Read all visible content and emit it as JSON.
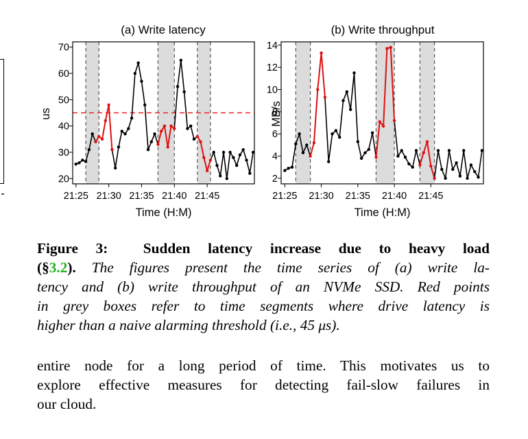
{
  "chart_data": [
    {
      "type": "line",
      "title": "(a) Write latency",
      "xlabel": "Time (H:M)",
      "ylabel": "us",
      "x_ticks": [
        "21:25",
        "21:30",
        "21:35",
        "21:40",
        "21:45"
      ],
      "y_ticks": [
        "20",
        "30",
        "40",
        "50",
        "60",
        "70"
      ],
      "ylim": [
        18,
        72
      ],
      "threshold": 45,
      "shaded_intervals": [
        [
          21.5,
          23.5
        ],
        [
          32.5,
          35.0
        ],
        [
          38.5,
          40.5
        ]
      ],
      "x": [
        20,
        20.5,
        21,
        21.5,
        22,
        22.5,
        23,
        23.5,
        24,
        24.5,
        25,
        25.5,
        26,
        26.5,
        27,
        27.5,
        28,
        28.5,
        29,
        29.5,
        30,
        30.5,
        31,
        31.5,
        32,
        32.5,
        33,
        33.5,
        34,
        34.5,
        35,
        35.5,
        36,
        36.5,
        37,
        37.5,
        38,
        38.5,
        39,
        39.5,
        40,
        40.5,
        41,
        41.5,
        42,
        42.5,
        43,
        43.5,
        44,
        44.5,
        45,
        45.5,
        46,
        46.5,
        47
      ],
      "values": [
        25.5,
        26,
        27,
        26.5,
        31,
        37,
        34,
        36,
        35,
        42,
        48,
        31,
        24,
        32,
        38,
        37,
        39,
        43,
        60,
        64,
        57,
        48,
        31,
        34,
        37,
        33,
        38,
        40,
        32,
        40,
        39,
        55,
        65,
        53,
        39,
        40,
        35,
        36,
        34,
        28,
        23,
        27,
        30,
        25,
        21,
        30,
        20,
        30,
        28,
        25,
        29,
        31,
        27,
        22,
        30
      ],
      "highlighted_x": [
        23,
        23.5,
        24,
        24.5,
        25,
        25.5,
        32.5,
        33,
        33.5,
        34,
        34.5,
        35,
        38.5,
        39,
        39.5,
        40,
        40.5
      ],
      "colors": {
        "normal": "#000000",
        "anomaly": "#dd1111",
        "threshold": "#ee2222",
        "shade": "#dcdcdc"
      }
    },
    {
      "type": "line",
      "title": "(b) Write throughput",
      "xlabel": "Time (H:M)",
      "ylabel": "MB/s",
      "x_ticks": [
        "21:25",
        "21:30",
        "21:35",
        "21:40",
        "21:45"
      ],
      "y_ticks": [
        "2",
        "4",
        "6",
        "8",
        "10",
        "12",
        "14"
      ],
      "ylim": [
        1.5,
        14.3
      ],
      "shaded_intervals": [
        [
          21.5,
          23.5
        ],
        [
          32.5,
          35.0
        ],
        [
          38.5,
          40.5
        ]
      ],
      "x": [
        20,
        20.5,
        21,
        21.5,
        22,
        22.5,
        23,
        23.5,
        24,
        24.5,
        25,
        25.5,
        26,
        26.5,
        27,
        27.5,
        28,
        28.5,
        29,
        29.5,
        30,
        30.5,
        31,
        31.5,
        32,
        32.5,
        33,
        33.5,
        34,
        34.5,
        35,
        35.5,
        36,
        36.5,
        37,
        37.5,
        38,
        38.5,
        39,
        39.5,
        40,
        40.5,
        41,
        41.5,
        42,
        42.5,
        43,
        43.5,
        44,
        44.5,
        45,
        45.5,
        46,
        46.5,
        47
      ],
      "values": [
        2.7,
        2.9,
        3.0,
        5.1,
        6.0,
        4.3,
        5.0,
        4.0,
        5.2,
        10.0,
        13.3,
        9.3,
        3.5,
        6.0,
        6.3,
        5.7,
        9.0,
        9.8,
        8.2,
        11.5,
        5.3,
        3.8,
        4.3,
        4.6,
        6.1,
        3.9,
        7.1,
        6.7,
        13.7,
        13.8,
        7.2,
        4.0,
        4.5,
        3.9,
        3.3,
        3.0,
        4.5,
        3.2,
        4.3,
        5.3,
        3.1,
        2.0,
        4.5,
        2.8,
        2.0,
        4.5,
        2.8,
        3.4,
        2.2,
        4.5,
        2.0,
        3.2,
        2.6,
        2.1,
        4.5
      ],
      "highlighted_x": [
        23.5,
        24,
        24.5,
        25,
        25.5,
        32.5,
        33,
        33.5,
        34,
        34.5,
        35,
        38.5,
        39,
        39.5,
        40,
        40.5
      ],
      "colors": {
        "normal": "#000000",
        "anomaly": "#dd1111",
        "shade": "#dcdcdc"
      }
    }
  ],
  "caption": {
    "label": "Figure 3:",
    "bold_title": "Sudden latency increase due to heavy load",
    "ref_open": "(§",
    "ref_num": "3.2",
    "ref_close": ").",
    "lines": [
      "The figures present the time series of (a) write la-",
      "tency and (b) write throughput of an NVMe SSD. Red points",
      "in grey boxes refer to time segments where drive latency is",
      "higher than a naive alarming threshold (i.e., 45 μs)."
    ]
  },
  "body_lines": [
    "entire node for a long period of time. This motivates us to",
    "explore effective measures for detecting fail-slow failures in",
    "our cloud."
  ]
}
